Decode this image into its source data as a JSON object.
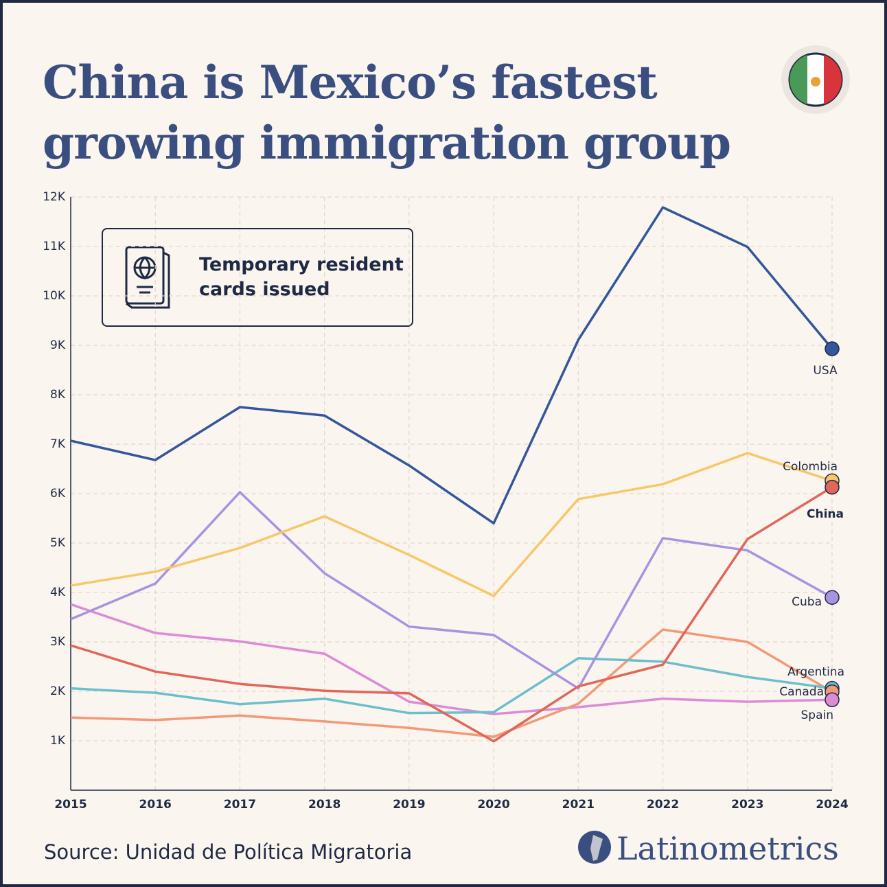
{
  "chart_data": {
    "type": "line",
    "title": "China is Mexico’s fastest growing immigration group",
    "annotation": "Temporary resident cards issued",
    "source": "Source: Unidad de Política Migratoria",
    "brand": "Latinometrics",
    "categories": [
      "2015",
      "2016",
      "2017",
      "2018",
      "2019",
      "2020",
      "2021",
      "2022",
      "2023",
      "2024"
    ],
    "ylim": [
      0,
      12000
    ],
    "yticks": [
      {
        "value": 1000,
        "label": "1K"
      },
      {
        "value": 2000,
        "label": "2K"
      },
      {
        "value": 3000,
        "label": "3K"
      },
      {
        "value": 4000,
        "label": "4K"
      },
      {
        "value": 5000,
        "label": "5K"
      },
      {
        "value": 6000,
        "label": "6K"
      },
      {
        "value": 7000,
        "label": "7K"
      },
      {
        "value": 8000,
        "label": "8K"
      },
      {
        "value": 9000,
        "label": "9K"
      },
      {
        "value": 10000,
        "label": "10K"
      },
      {
        "value": 11000,
        "label": "11K"
      },
      {
        "value": 12000,
        "label": "12K"
      }
    ],
    "grid": true,
    "series": [
      {
        "name": "USA",
        "color": "#34569a",
        "values": [
          7070,
          6680,
          7750,
          7580,
          6570,
          5400,
          9110,
          11790,
          10990,
          8930
        ]
      },
      {
        "name": "Colombia",
        "color": "#f6c86a",
        "values": [
          4140,
          4420,
          4900,
          5540,
          4760,
          3930,
          5890,
          6190,
          6820,
          6260
        ]
      },
      {
        "name": "China",
        "color": "#e0675a",
        "values": [
          2930,
          2400,
          2150,
          2010,
          1960,
          990,
          2100,
          2540,
          5080,
          6130
        ]
      },
      {
        "name": "Cuba",
        "color": "#a893e0",
        "values": [
          3460,
          4180,
          6030,
          4390,
          3310,
          3140,
          2060,
          5100,
          4850,
          3900
        ]
      },
      {
        "name": "Argentina",
        "color": "#6bbfcc",
        "values": [
          2060,
          1970,
          1740,
          1850,
          1560,
          1580,
          2670,
          2600,
          2290,
          2060
        ]
      },
      {
        "name": "Canada",
        "color": "#f29a78",
        "values": [
          1470,
          1420,
          1510,
          1390,
          1260,
          1080,
          1750,
          3250,
          3000,
          1990
        ]
      },
      {
        "name": "Spain",
        "color": "#dc8bd6",
        "values": [
          3760,
          3180,
          3010,
          2760,
          1790,
          1540,
          1680,
          1850,
          1790,
          1830
        ]
      }
    ]
  }
}
